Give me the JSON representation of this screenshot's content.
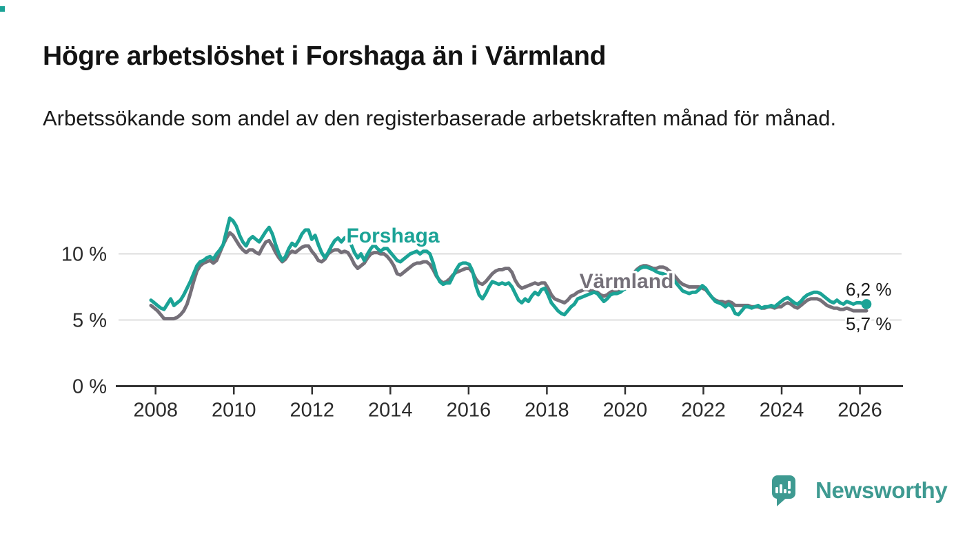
{
  "colors": {
    "accent": "#1ba396",
    "gray": "#757079",
    "logo_teal": "#3e9a91",
    "title_text": "#131313",
    "axis": "#333333",
    "grid": "#d8d8d8",
    "tick_text": "#2b2b2b"
  },
  "chart_data": {
    "type": "line",
    "title": "Högre arbetslöshet i Forshaga än i Värmland",
    "subtitle": "Arbetssökande som andel av den registerbaserade arbetskraften månad för månad.",
    "frequency": "monthly",
    "x_start": "2008-01",
    "x_end": "2026-03",
    "ylim": [
      0,
      13.5
    ],
    "grid": "horizontal",
    "legend_position": "inline-labels",
    "yticks": [
      {
        "value": 0,
        "label": "0 %"
      },
      {
        "value": 5,
        "label": "5 %"
      },
      {
        "value": 10,
        "label": "10 %"
      }
    ],
    "xticks": [
      "2008",
      "2010",
      "2012",
      "2014",
      "2016",
      "2018",
      "2020",
      "2022",
      "2024",
      "2026"
    ],
    "series": [
      {
        "name": "Värmland",
        "color": "#757079",
        "values": [
          6.1,
          5.9,
          5.7,
          5.4,
          5.1,
          5.1,
          5.1,
          5.1,
          5.2,
          5.4,
          5.7,
          6.2,
          7.0,
          7.9,
          8.7,
          9.1,
          9.3,
          9.4,
          9.5,
          9.3,
          9.5,
          10.1,
          10.7,
          11.2,
          11.6,
          11.4,
          11.0,
          10.6,
          10.3,
          10.1,
          10.3,
          10.3,
          10.1,
          10.0,
          10.5,
          10.9,
          11.0,
          10.6,
          10.1,
          9.7,
          9.4,
          9.6,
          10.0,
          10.2,
          10.1,
          10.3,
          10.5,
          10.6,
          10.6,
          10.2,
          9.9,
          9.5,
          9.4,
          9.6,
          10.0,
          10.2,
          10.3,
          10.3,
          10.1,
          10.2,
          10.1,
          9.7,
          9.2,
          8.9,
          9.1,
          9.3,
          9.7,
          10.0,
          10.1,
          10.1,
          10.0,
          10.0,
          9.8,
          9.5,
          9.1,
          8.5,
          8.4,
          8.6,
          8.8,
          9.0,
          9.2,
          9.3,
          9.3,
          9.4,
          9.4,
          9.2,
          8.8,
          8.3,
          8.0,
          7.8,
          7.9,
          8.1,
          8.4,
          8.6,
          8.7,
          8.8,
          8.9,
          8.9,
          8.6,
          8.1,
          7.8,
          7.7,
          7.9,
          8.2,
          8.5,
          8.7,
          8.8,
          8.8,
          8.9,
          8.9,
          8.6,
          8.0,
          7.6,
          7.4,
          7.5,
          7.6,
          7.7,
          7.8,
          7.7,
          7.8,
          7.8,
          7.4,
          6.9,
          6.6,
          6.5,
          6.4,
          6.3,
          6.5,
          6.8,
          6.9,
          7.1,
          7.2,
          7.3,
          7.3,
          7.2,
          7.2,
          7.1,
          6.9,
          6.8,
          6.9,
          7.1,
          7.2,
          7.2,
          7.3,
          7.5,
          7.6,
          8.0,
          8.5,
          8.8,
          9.0,
          9.1,
          9.1,
          9.0,
          8.9,
          8.9,
          9.0,
          9.0,
          8.9,
          8.7,
          8.5,
          8.2,
          7.9,
          7.7,
          7.6,
          7.5,
          7.5,
          7.5,
          7.5,
          7.4,
          7.3,
          7.0,
          6.7,
          6.5,
          6.4,
          6.4,
          6.3,
          6.4,
          6.3,
          6.1,
          6.1,
          6.1,
          6.1,
          6.1,
          6.0,
          6.0,
          6.0,
          5.9,
          5.9,
          6.0,
          6.0,
          5.9,
          6.0,
          6.0,
          6.2,
          6.3,
          6.2,
          6.0,
          5.9,
          6.1,
          6.3,
          6.5,
          6.6,
          6.6,
          6.6,
          6.5,
          6.3,
          6.1,
          6.0,
          5.9,
          5.9,
          5.8,
          5.8,
          5.9,
          5.8,
          5.7,
          5.7,
          5.7,
          5.7,
          5.7
        ]
      },
      {
        "name": "Forshaga",
        "color": "#1ba396",
        "values": [
          6.5,
          6.3,
          6.1,
          5.9,
          5.8,
          6.2,
          6.6,
          6.1,
          6.3,
          6.5,
          6.9,
          7.4,
          7.9,
          8.5,
          9.1,
          9.4,
          9.5,
          9.7,
          9.8,
          9.6,
          10.0,
          10.3,
          10.7,
          11.7,
          12.7,
          12.5,
          12.1,
          11.4,
          10.9,
          10.6,
          11.1,
          11.3,
          11.1,
          10.9,
          11.3,
          11.7,
          12.0,
          11.5,
          10.7,
          10.0,
          9.5,
          9.8,
          10.4,
          10.8,
          10.6,
          11.0,
          11.5,
          11.8,
          11.8,
          11.1,
          11.4,
          10.7,
          10.1,
          9.7,
          10.1,
          10.6,
          11.0,
          11.2,
          10.9,
          11.2,
          11.3,
          10.7,
          10.1,
          9.7,
          10.0,
          9.5,
          10.0,
          10.4,
          10.7,
          10.4,
          10.2,
          10.4,
          10.4,
          10.1,
          9.8,
          9.5,
          9.4,
          9.6,
          9.8,
          10.0,
          10.1,
          10.2,
          10.0,
          10.2,
          10.2,
          10.0,
          9.3,
          8.4,
          7.9,
          7.7,
          7.8,
          7.8,
          8.3,
          8.8,
          9.2,
          9.3,
          9.3,
          9.2,
          8.7,
          7.6,
          6.9,
          6.6,
          7.0,
          7.5,
          7.9,
          7.8,
          7.7,
          7.8,
          7.7,
          7.8,
          7.5,
          7.0,
          6.5,
          6.3,
          6.6,
          6.4,
          6.8,
          7.1,
          6.9,
          7.3,
          7.4,
          6.9,
          6.3,
          6.0,
          5.7,
          5.5,
          5.4,
          5.7,
          6.0,
          6.2,
          6.6,
          6.7,
          6.8,
          6.9,
          7.0,
          7.1,
          7.0,
          6.7,
          6.4,
          6.6,
          6.9,
          7.0,
          7.0,
          7.1,
          7.3,
          7.4,
          7.8,
          8.4,
          8.7,
          8.9,
          9.0,
          9.0,
          8.9,
          8.8,
          8.65,
          8.55,
          8.5,
          8.4,
          8.3,
          8.1,
          7.8,
          7.5,
          7.2,
          7.1,
          7.0,
          7.1,
          7.1,
          7.3,
          7.6,
          7.4,
          7.0,
          6.7,
          6.4,
          6.3,
          6.2,
          6.0,
          6.2,
          6.0,
          5.5,
          5.4,
          5.7,
          6.0,
          6.0,
          5.9,
          6.0,
          6.1,
          5.9,
          6.0,
          6.0,
          6.1,
          6.0,
          6.2,
          6.4,
          6.6,
          6.7,
          6.5,
          6.3,
          6.2,
          6.4,
          6.7,
          6.9,
          7.0,
          7.1,
          7.1,
          7.0,
          6.8,
          6.6,
          6.4,
          6.3,
          6.5,
          6.3,
          6.2,
          6.4,
          6.3,
          6.2,
          6.3,
          6.3,
          6.25,
          6.2
        ]
      }
    ],
    "annotations": {
      "forshaga_end": "6,2 %",
      "varmland_end": "5,7 %"
    }
  },
  "branding": {
    "logo_text": "Newsworthy"
  }
}
